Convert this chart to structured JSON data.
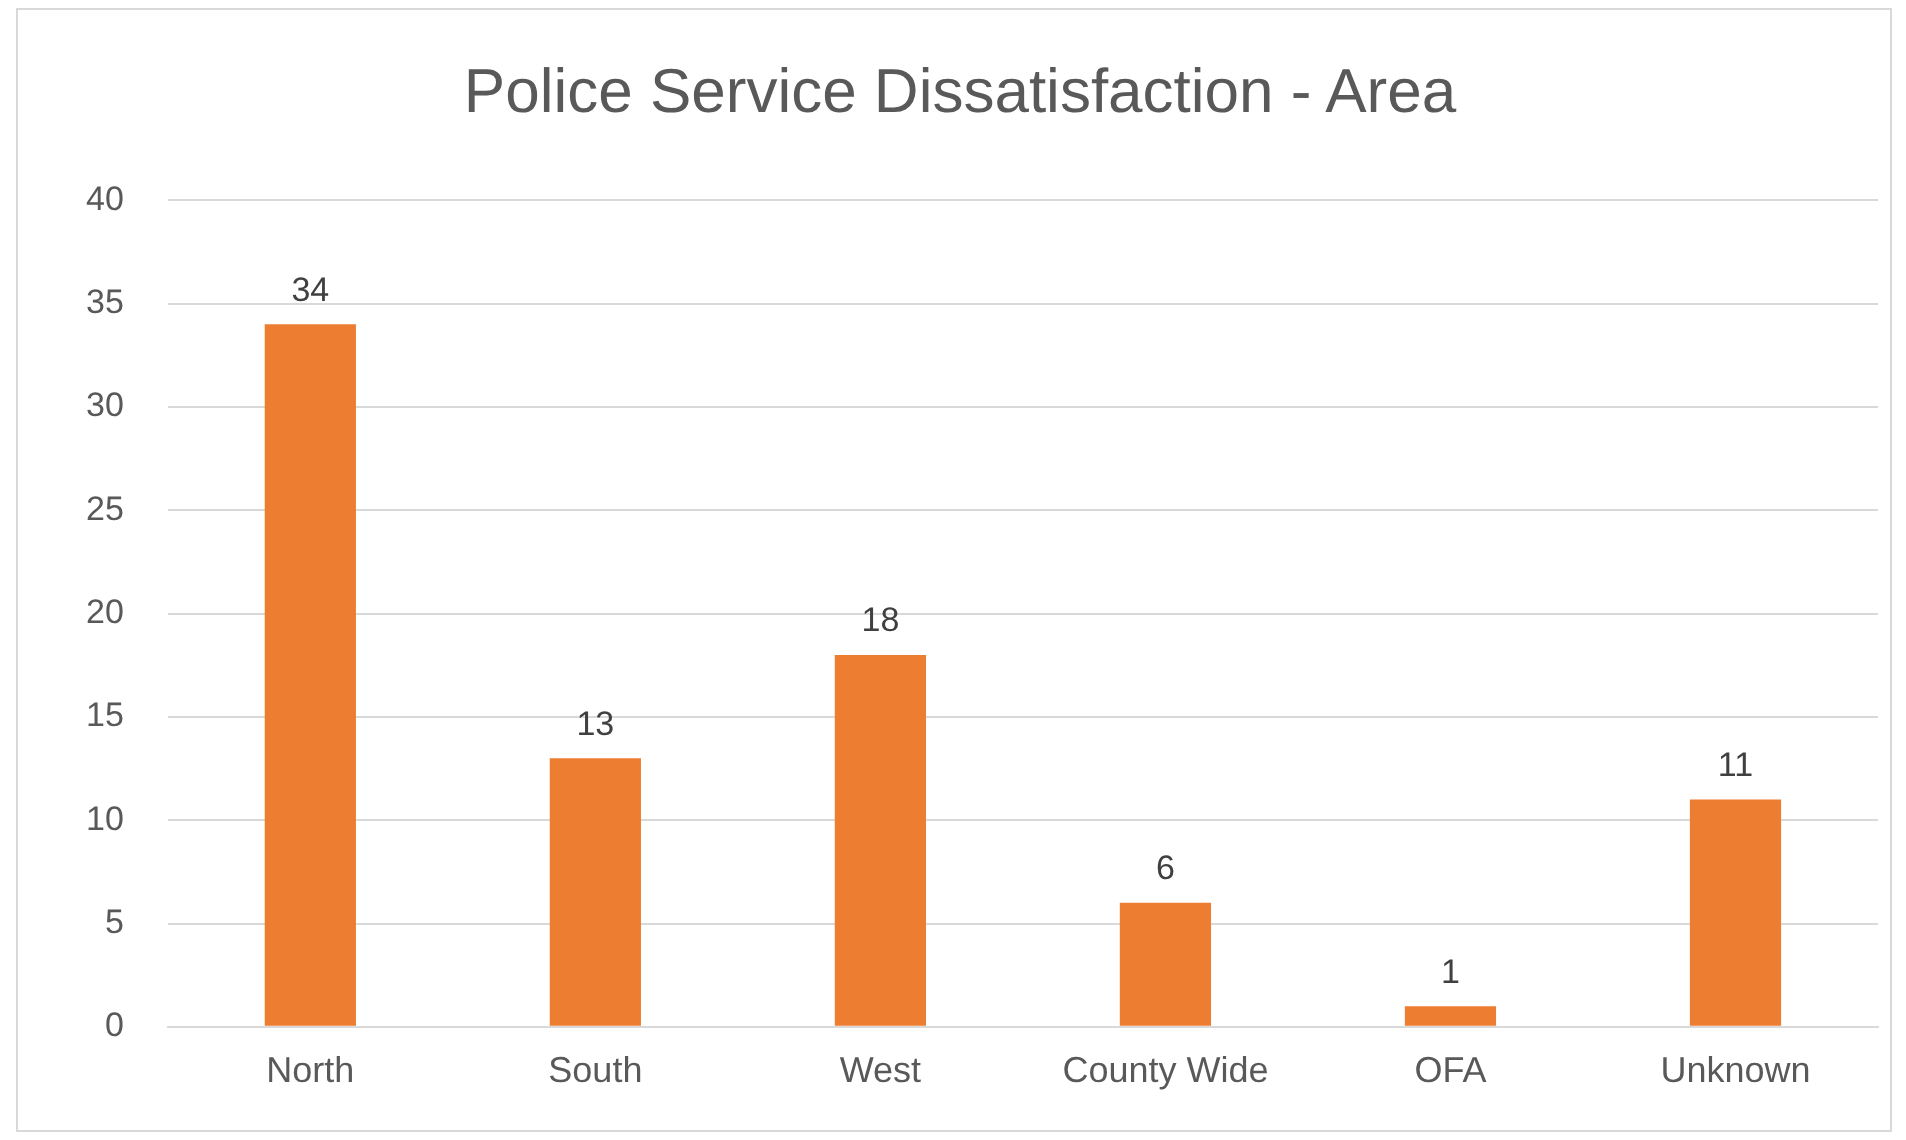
{
  "chart_data": {
    "type": "bar",
    "title": "Police Service Dissatisfaction - Area",
    "categories": [
      "North",
      "South",
      "West",
      "County Wide",
      "OFA",
      "Unknown"
    ],
    "values": [
      34,
      13,
      18,
      6,
      1,
      11
    ],
    "color": "#ed7d31",
    "ylim": [
      0,
      40
    ],
    "yticks": [
      0,
      5,
      10,
      15,
      20,
      25,
      30,
      35,
      40
    ],
    "grid": "y",
    "data_labels": true
  }
}
